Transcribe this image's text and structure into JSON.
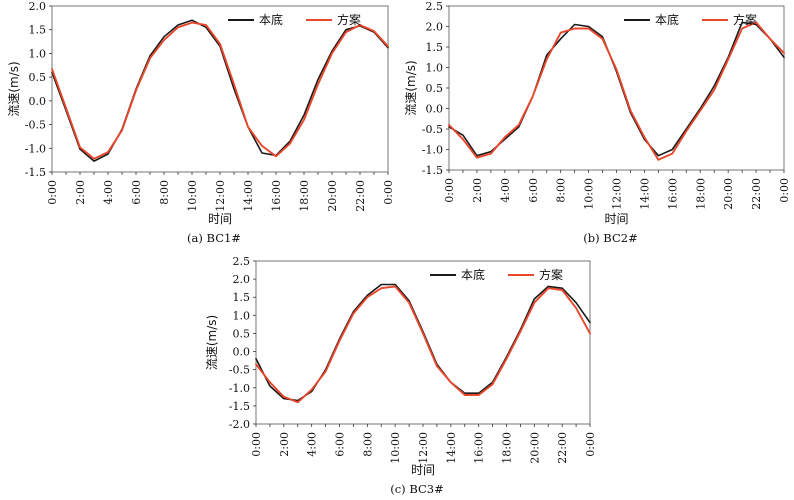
{
  "chart_data": [
    {
      "type": "line",
      "caption": "(a) BC1#",
      "xlabel": "时间",
      "ylabel": "流速(m/s)",
      "categories": [
        "0:00",
        "1:00",
        "2:00",
        "3:00",
        "4:00",
        "5:00",
        "6:00",
        "7:00",
        "8:00",
        "9:00",
        "10:00",
        "11:00",
        "12:00",
        "13:00",
        "14:00",
        "15:00",
        "16:00",
        "17:00",
        "18:00",
        "19:00",
        "20:00",
        "21:00",
        "22:00",
        "23:00",
        "0:00"
      ],
      "xtick_labels": [
        "0:00",
        "2:00",
        "4:00",
        "6:00",
        "8:00",
        "10:00",
        "12:00",
        "14:00",
        "16:00",
        "18:00",
        "20:00",
        "22:00",
        "0:00"
      ],
      "ylim": [
        -1.5,
        2.0
      ],
      "yticks": [
        "-1.5",
        "-1.0",
        "-0.5",
        "0.0",
        "0.5",
        "1.0",
        "1.5",
        "2.0"
      ],
      "legend_position": "top-right",
      "series": [
        {
          "name": "本底",
          "color": "#1a1a1a",
          "values": [
            0.6,
            -0.2,
            -1.02,
            -1.27,
            -1.12,
            -0.6,
            0.25,
            0.95,
            1.35,
            1.6,
            1.7,
            1.55,
            1.15,
            0.25,
            -0.55,
            -1.1,
            -1.15,
            -0.85,
            -0.3,
            0.45,
            1.05,
            1.5,
            1.58,
            1.45,
            1.12
          ]
        },
        {
          "name": "方案",
          "color": "#e8472b",
          "values": [
            0.67,
            -0.15,
            -0.98,
            -1.22,
            -1.08,
            -0.62,
            0.22,
            0.9,
            1.28,
            1.55,
            1.65,
            1.6,
            1.2,
            0.35,
            -0.55,
            -0.95,
            -1.17,
            -0.9,
            -0.4,
            0.35,
            1.0,
            1.45,
            1.6,
            1.47,
            1.15
          ]
        }
      ]
    },
    {
      "type": "line",
      "caption": "(b) BC2#",
      "xlabel": "时间",
      "ylabel": "流速(m/s)",
      "categories": [
        "0:00",
        "1:00",
        "2:00",
        "3:00",
        "4:00",
        "5:00",
        "6:00",
        "7:00",
        "8:00",
        "9:00",
        "10:00",
        "11:00",
        "12:00",
        "13:00",
        "14:00",
        "15:00",
        "16:00",
        "17:00",
        "18:00",
        "19:00",
        "20:00",
        "21:00",
        "22:00",
        "23:00",
        "0:00"
      ],
      "xtick_labels": [
        "0:00",
        "2:00",
        "4:00",
        "6:00",
        "8:00",
        "10:00",
        "12:00",
        "14:00",
        "16:00",
        "18:00",
        "20:00",
        "22:00",
        "0:00"
      ],
      "ylim": [
        -1.5,
        2.5
      ],
      "yticks": [
        "-1.5",
        "-1.0",
        "-0.5",
        "0.0",
        "0.5",
        "1.0",
        "1.5",
        "2.0",
        "2.5"
      ],
      "legend_position": "top-right",
      "series": [
        {
          "name": "本底",
          "color": "#1a1a1a",
          "values": [
            -0.45,
            -0.65,
            -1.15,
            -1.05,
            -0.75,
            -0.45,
            0.3,
            1.3,
            1.7,
            2.05,
            2.0,
            1.75,
            0.9,
            -0.1,
            -0.75,
            -1.15,
            -1.0,
            -0.5,
            0.0,
            0.55,
            1.25,
            2.1,
            2.05,
            1.7,
            1.25
          ]
        },
        {
          "name": "方案",
          "color": "#e8472b",
          "values": [
            -0.4,
            -0.75,
            -1.2,
            -1.1,
            -0.7,
            -0.4,
            0.3,
            1.2,
            1.85,
            1.95,
            1.95,
            1.7,
            0.95,
            -0.05,
            -0.7,
            -1.25,
            -1.1,
            -0.55,
            -0.05,
            0.45,
            1.2,
            1.95,
            2.1,
            1.7,
            1.35
          ]
        }
      ]
    },
    {
      "type": "line",
      "caption": "(c) BC3#",
      "xlabel": "时间",
      "ylabel": "流速(m/s)",
      "categories": [
        "0:00",
        "1:00",
        "2:00",
        "3:00",
        "4:00",
        "5:00",
        "6:00",
        "7:00",
        "8:00",
        "9:00",
        "10:00",
        "11:00",
        "12:00",
        "13:00",
        "14:00",
        "15:00",
        "16:00",
        "17:00",
        "18:00",
        "19:00",
        "20:00",
        "21:00",
        "22:00",
        "23:00",
        "0:00"
      ],
      "xtick_labels": [
        "0:00",
        "2:00",
        "4:00",
        "6:00",
        "8:00",
        "10:00",
        "12:00",
        "14:00",
        "16:00",
        "18:00",
        "20:00",
        "22:00",
        "0:00"
      ],
      "ylim": [
        -2.0,
        2.5
      ],
      "yticks": [
        "-2.0",
        "-1.5",
        "-1.0",
        "-0.5",
        "0.0",
        "0.5",
        "1.0",
        "1.5",
        "2.0",
        "2.5"
      ],
      "legend_position": "top-right",
      "series": [
        {
          "name": "本底",
          "color": "#1a1a1a",
          "values": [
            -0.2,
            -0.95,
            -1.3,
            -1.35,
            -1.1,
            -0.5,
            0.35,
            1.1,
            1.55,
            1.85,
            1.85,
            1.4,
            0.55,
            -0.35,
            -0.85,
            -1.15,
            -1.15,
            -0.85,
            -0.15,
            0.6,
            1.45,
            1.8,
            1.75,
            1.35,
            0.8
          ]
        },
        {
          "name": "方案",
          "color": "#e8472b",
          "values": [
            -0.35,
            -0.85,
            -1.25,
            -1.4,
            -1.05,
            -0.55,
            0.3,
            1.05,
            1.5,
            1.75,
            1.8,
            1.35,
            0.5,
            -0.4,
            -0.85,
            -1.2,
            -1.2,
            -0.9,
            -0.2,
            0.55,
            1.35,
            1.75,
            1.7,
            1.2,
            0.5
          ]
        }
      ]
    }
  ]
}
